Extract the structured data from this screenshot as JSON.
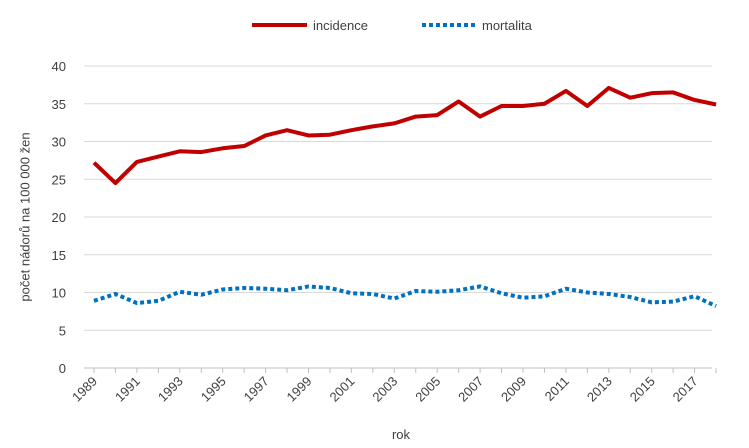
{
  "chart_data": {
    "type": "line",
    "title": "",
    "xlabel": "rok",
    "ylabel": "počet nádorů na 100 000 žen",
    "ylim": [
      0,
      40
    ],
    "yticks": [
      0,
      5,
      10,
      15,
      20,
      25,
      30,
      35,
      40
    ],
    "y_tick_labels": [
      "0",
      "5",
      "10",
      "15",
      "20",
      "25",
      "30",
      "35",
      "40"
    ],
    "x": [
      1989,
      1990,
      1991,
      1992,
      1993,
      1994,
      1995,
      1996,
      1997,
      1998,
      1999,
      2000,
      2001,
      2002,
      2003,
      2004,
      2005,
      2006,
      2007,
      2008,
      2009,
      2010,
      2011,
      2012,
      2013,
      2014,
      2015,
      2016,
      2017,
      2018
    ],
    "x_tick_labels": [
      "1989",
      "1991",
      "1993",
      "1995",
      "1997",
      "1999",
      "2001",
      "2003",
      "2005",
      "2007",
      "2009",
      "2011",
      "2013",
      "2015",
      "2017"
    ],
    "grid": true,
    "legend_position": "top-center",
    "series": [
      {
        "name": "incidence",
        "color": "#c00000",
        "style": "solid",
        "values": [
          27.2,
          24.5,
          27.3,
          28.0,
          28.7,
          28.6,
          29.1,
          29.4,
          30.8,
          31.5,
          30.8,
          30.9,
          31.5,
          32.0,
          32.4,
          33.3,
          33.5,
          35.3,
          33.3,
          34.7,
          34.7,
          35.0,
          36.7,
          34.7,
          37.1,
          35.8,
          36.4,
          36.5,
          35.5,
          34.9
        ]
      },
      {
        "name": "mortalita",
        "color": "#0070c0",
        "style": "dotted",
        "values": [
          8.9,
          9.8,
          8.6,
          8.9,
          10.1,
          9.7,
          10.4,
          10.6,
          10.5,
          10.3,
          10.8,
          10.6,
          9.9,
          9.8,
          9.2,
          10.2,
          10.1,
          10.3,
          10.8,
          9.9,
          9.3,
          9.5,
          10.5,
          10.0,
          9.8,
          9.4,
          8.7,
          8.8,
          9.5,
          8.2
        ]
      }
    ]
  }
}
